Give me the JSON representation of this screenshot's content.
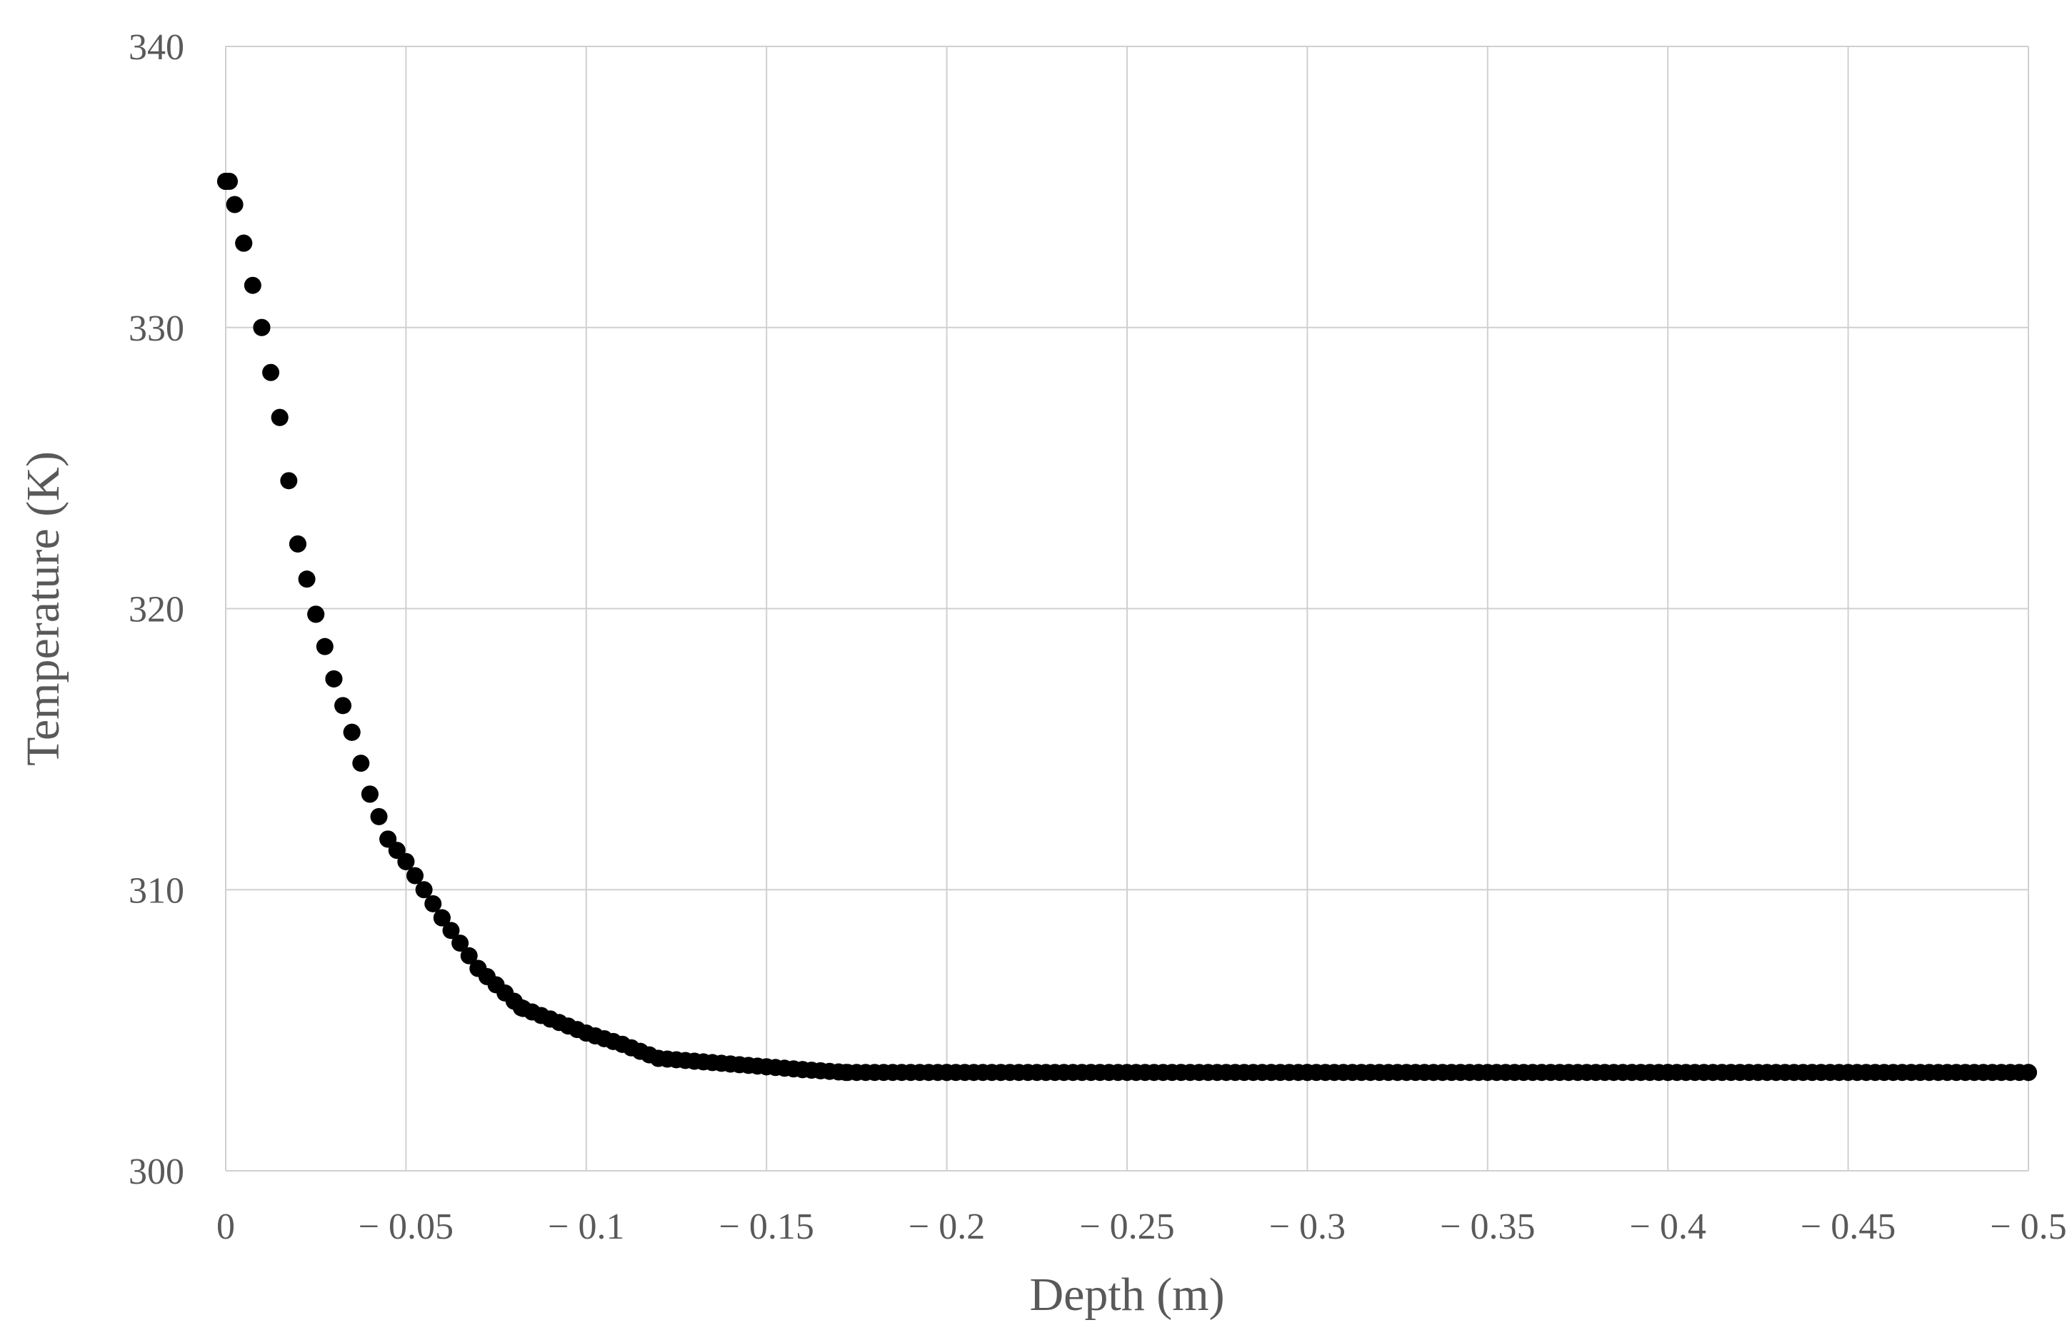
{
  "chart_data": {
    "type": "scatter",
    "title": "",
    "xlabel": "Depth (m)",
    "ylabel": "Temperature (K)",
    "xlim": [
      0,
      -0.5
    ],
    "ylim": [
      300,
      340
    ],
    "x_ticks": [
      0,
      -0.05,
      -0.1,
      -0.15,
      -0.2,
      -0.25,
      -0.3,
      -0.35,
      -0.4,
      -0.45,
      -0.5
    ],
    "x_tick_labels": [
      "0",
      "− 0.05",
      "− 0.1",
      "− 0.15",
      "− 0.2",
      "− 0.25",
      "− 0.3",
      "− 0.35",
      "− 0.4",
      "− 0.45",
      "− 0.5"
    ],
    "y_ticks": [
      300,
      310,
      320,
      330,
      340
    ],
    "y_tick_labels": [
      "300",
      "310",
      "320",
      "330",
      "340"
    ],
    "grid": true,
    "legend": "none",
    "marker_color": "#000000",
    "series": [
      {
        "x": [
          0,
          -0.001,
          -0.005,
          -0.01,
          -0.015,
          -0.02,
          -0.025,
          -0.03,
          -0.035,
          -0.04,
          -0.045,
          -0.05,
          -0.06,
          -0.07,
          -0.082,
          -0.09,
          -0.1,
          -0.11,
          -0.12,
          -0.13,
          -0.14,
          -0.15,
          -0.16,
          -0.172,
          -0.2,
          -0.3,
          -0.4,
          -0.5
        ],
        "y": [
          335.2,
          335.2,
          333.0,
          330.0,
          326.8,
          322.3,
          319.8,
          317.5,
          315.6,
          313.4,
          311.8,
          311.0,
          309.0,
          307.2,
          305.8,
          305.4,
          304.9,
          304.5,
          304.0,
          303.9,
          303.8,
          303.7,
          303.6,
          303.5,
          303.5,
          303.5,
          303.5,
          303.5
        ]
      }
    ]
  }
}
